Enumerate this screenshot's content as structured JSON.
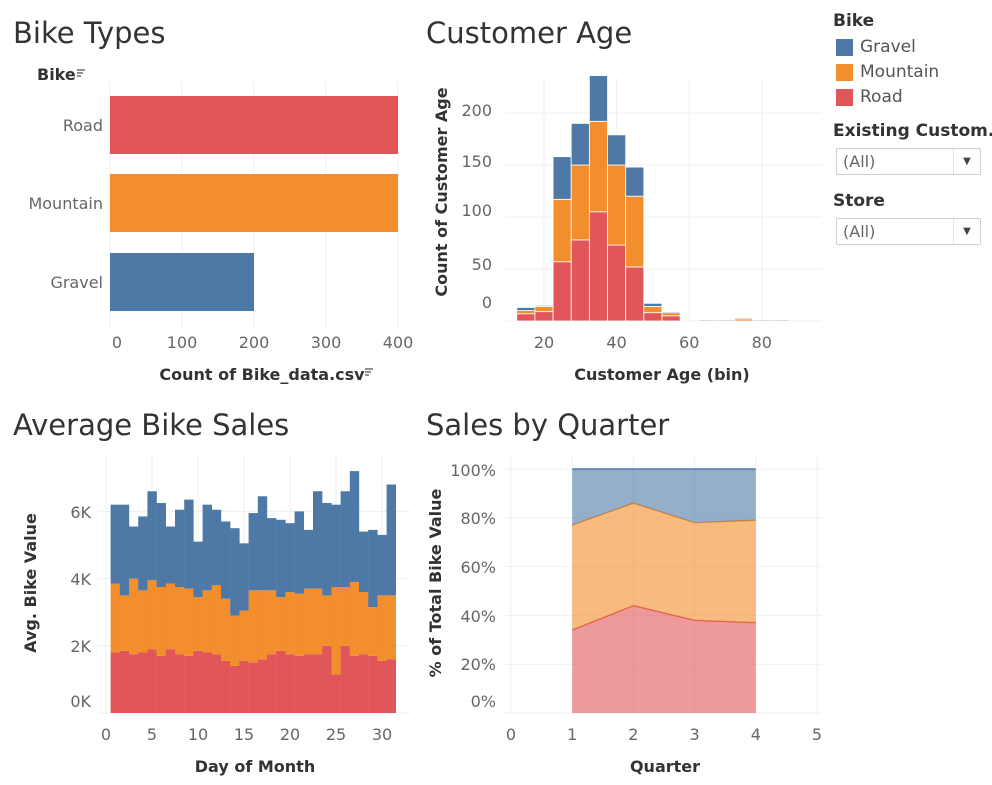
{
  "colors": {
    "gravel": "#4e79a7",
    "mountain": "#f28e2b",
    "road": "#e15759"
  },
  "chart_data": [
    {
      "id": "bike_types",
      "type": "bar",
      "orientation": "horizontal",
      "title": "Bike Types",
      "row_header": "Bike",
      "xlabel": "Count of Bike_data.csv",
      "categories": [
        "Road",
        "Mountain",
        "Gravel"
      ],
      "values": [
        400,
        400,
        200
      ],
      "xlim": [
        0,
        400
      ],
      "xticks": [
        "0",
        "100",
        "200",
        "300",
        "400"
      ]
    },
    {
      "id": "customer_age",
      "type": "bar",
      "stacked": true,
      "title": "Customer Age",
      "xlabel": "Customer Age (bin)",
      "ylabel": "Count of Customer Age",
      "bin_width": 5,
      "x": [
        15,
        20,
        25,
        30,
        35,
        40,
        45,
        50,
        55,
        60,
        65,
        70,
        75,
        80,
        85,
        90
      ],
      "series": [
        {
          "name": "Road",
          "values": [
            7,
            9,
            57,
            78,
            105,
            73,
            52,
            8,
            5,
            0,
            0,
            0,
            0,
            0,
            0,
            0
          ]
        },
        {
          "name": "Mountain",
          "values": [
            3,
            5,
            60,
            72,
            87,
            77,
            68,
            6,
            3,
            0,
            0,
            0,
            2,
            0,
            0,
            0
          ]
        },
        {
          "name": "Gravel",
          "values": [
            3,
            1,
            41,
            40,
            44,
            29,
            28,
            3,
            1,
            0,
            1,
            1,
            1,
            1,
            1,
            0
          ]
        }
      ],
      "ylim": [
        0,
        240
      ],
      "yticks": [
        "0",
        "50",
        "100",
        "150",
        "200"
      ],
      "xticks": [
        "20",
        "40",
        "60",
        "80"
      ]
    },
    {
      "id": "average_bike_sales",
      "type": "bar",
      "stacked": true,
      "title": "Average Bike Sales",
      "xlabel": "Day of Month",
      "ylabel": "Avg. Bike Value",
      "x": [
        1,
        2,
        3,
        4,
        5,
        6,
        7,
        8,
        9,
        10,
        11,
        12,
        13,
        14,
        15,
        16,
        17,
        18,
        19,
        20,
        21,
        22,
        23,
        24,
        25,
        26,
        27,
        28,
        29,
        30,
        31
      ],
      "series": [
        {
          "name": "Road",
          "values": [
            1800,
            1850,
            1750,
            1800,
            1900,
            1700,
            1900,
            1750,
            1700,
            1850,
            1800,
            1750,
            1550,
            1400,
            1550,
            1500,
            1600,
            1750,
            1850,
            1750,
            1700,
            1750,
            1750,
            2000,
            1150,
            2000,
            1700,
            1750,
            1700,
            1550,
            1600
          ]
        },
        {
          "name": "Mountain",
          "values": [
            2050,
            1650,
            2250,
            1850,
            2050,
            2050,
            1950,
            2000,
            2000,
            1600,
            1850,
            2050,
            1850,
            1500,
            1500,
            2150,
            2050,
            1900,
            1600,
            1850,
            1850,
            1950,
            1950,
            1500,
            2600,
            1750,
            2200,
            1850,
            1450,
            1950,
            1900
          ]
        },
        {
          "name": "Gravel",
          "values": [
            2350,
            2700,
            1550,
            2200,
            2650,
            2500,
            1700,
            2300,
            2650,
            1650,
            2550,
            2250,
            2300,
            2600,
            2000,
            2300,
            2800,
            2150,
            2300,
            2050,
            2450,
            1750,
            2900,
            2750,
            2450,
            2850,
            3300,
            1800,
            2300,
            1800,
            3300
          ]
        }
      ],
      "ylim": [
        0,
        7500
      ],
      "yticks": [
        "0K",
        "2K",
        "4K",
        "6K"
      ],
      "xticks": [
        "0",
        "5",
        "10",
        "15",
        "20",
        "25",
        "30"
      ]
    },
    {
      "id": "sales_by_quarter",
      "type": "area",
      "stacked": "percent",
      "title": "Sales by Quarter",
      "xlabel": "Quarter",
      "ylabel": "% of Total Bike Value",
      "x": [
        1,
        2,
        3,
        4
      ],
      "series": [
        {
          "name": "Road",
          "values": [
            34,
            44,
            38,
            37
          ]
        },
        {
          "name": "Mountain",
          "values": [
            43,
            42,
            40,
            42
          ]
        },
        {
          "name": "Gravel",
          "values": [
            23,
            14,
            22,
            21
          ]
        }
      ],
      "xlim": [
        0,
        5
      ],
      "ylim": [
        0,
        100
      ],
      "yticks": [
        "0%",
        "20%",
        "40%",
        "60%",
        "80%",
        "100%"
      ],
      "xticks": [
        "0",
        "1",
        "2",
        "3",
        "4",
        "5"
      ]
    }
  ],
  "legend": {
    "title": "Bike",
    "items": [
      {
        "label": "Gravel",
        "color": "#4e79a7"
      },
      {
        "label": "Mountain",
        "color": "#f28e2b"
      },
      {
        "label": "Road",
        "color": "#e15759"
      }
    ]
  },
  "filters": [
    {
      "title": "Existing Custom..",
      "value": "(All)"
    },
    {
      "title": "Store",
      "value": "(All)"
    }
  ]
}
